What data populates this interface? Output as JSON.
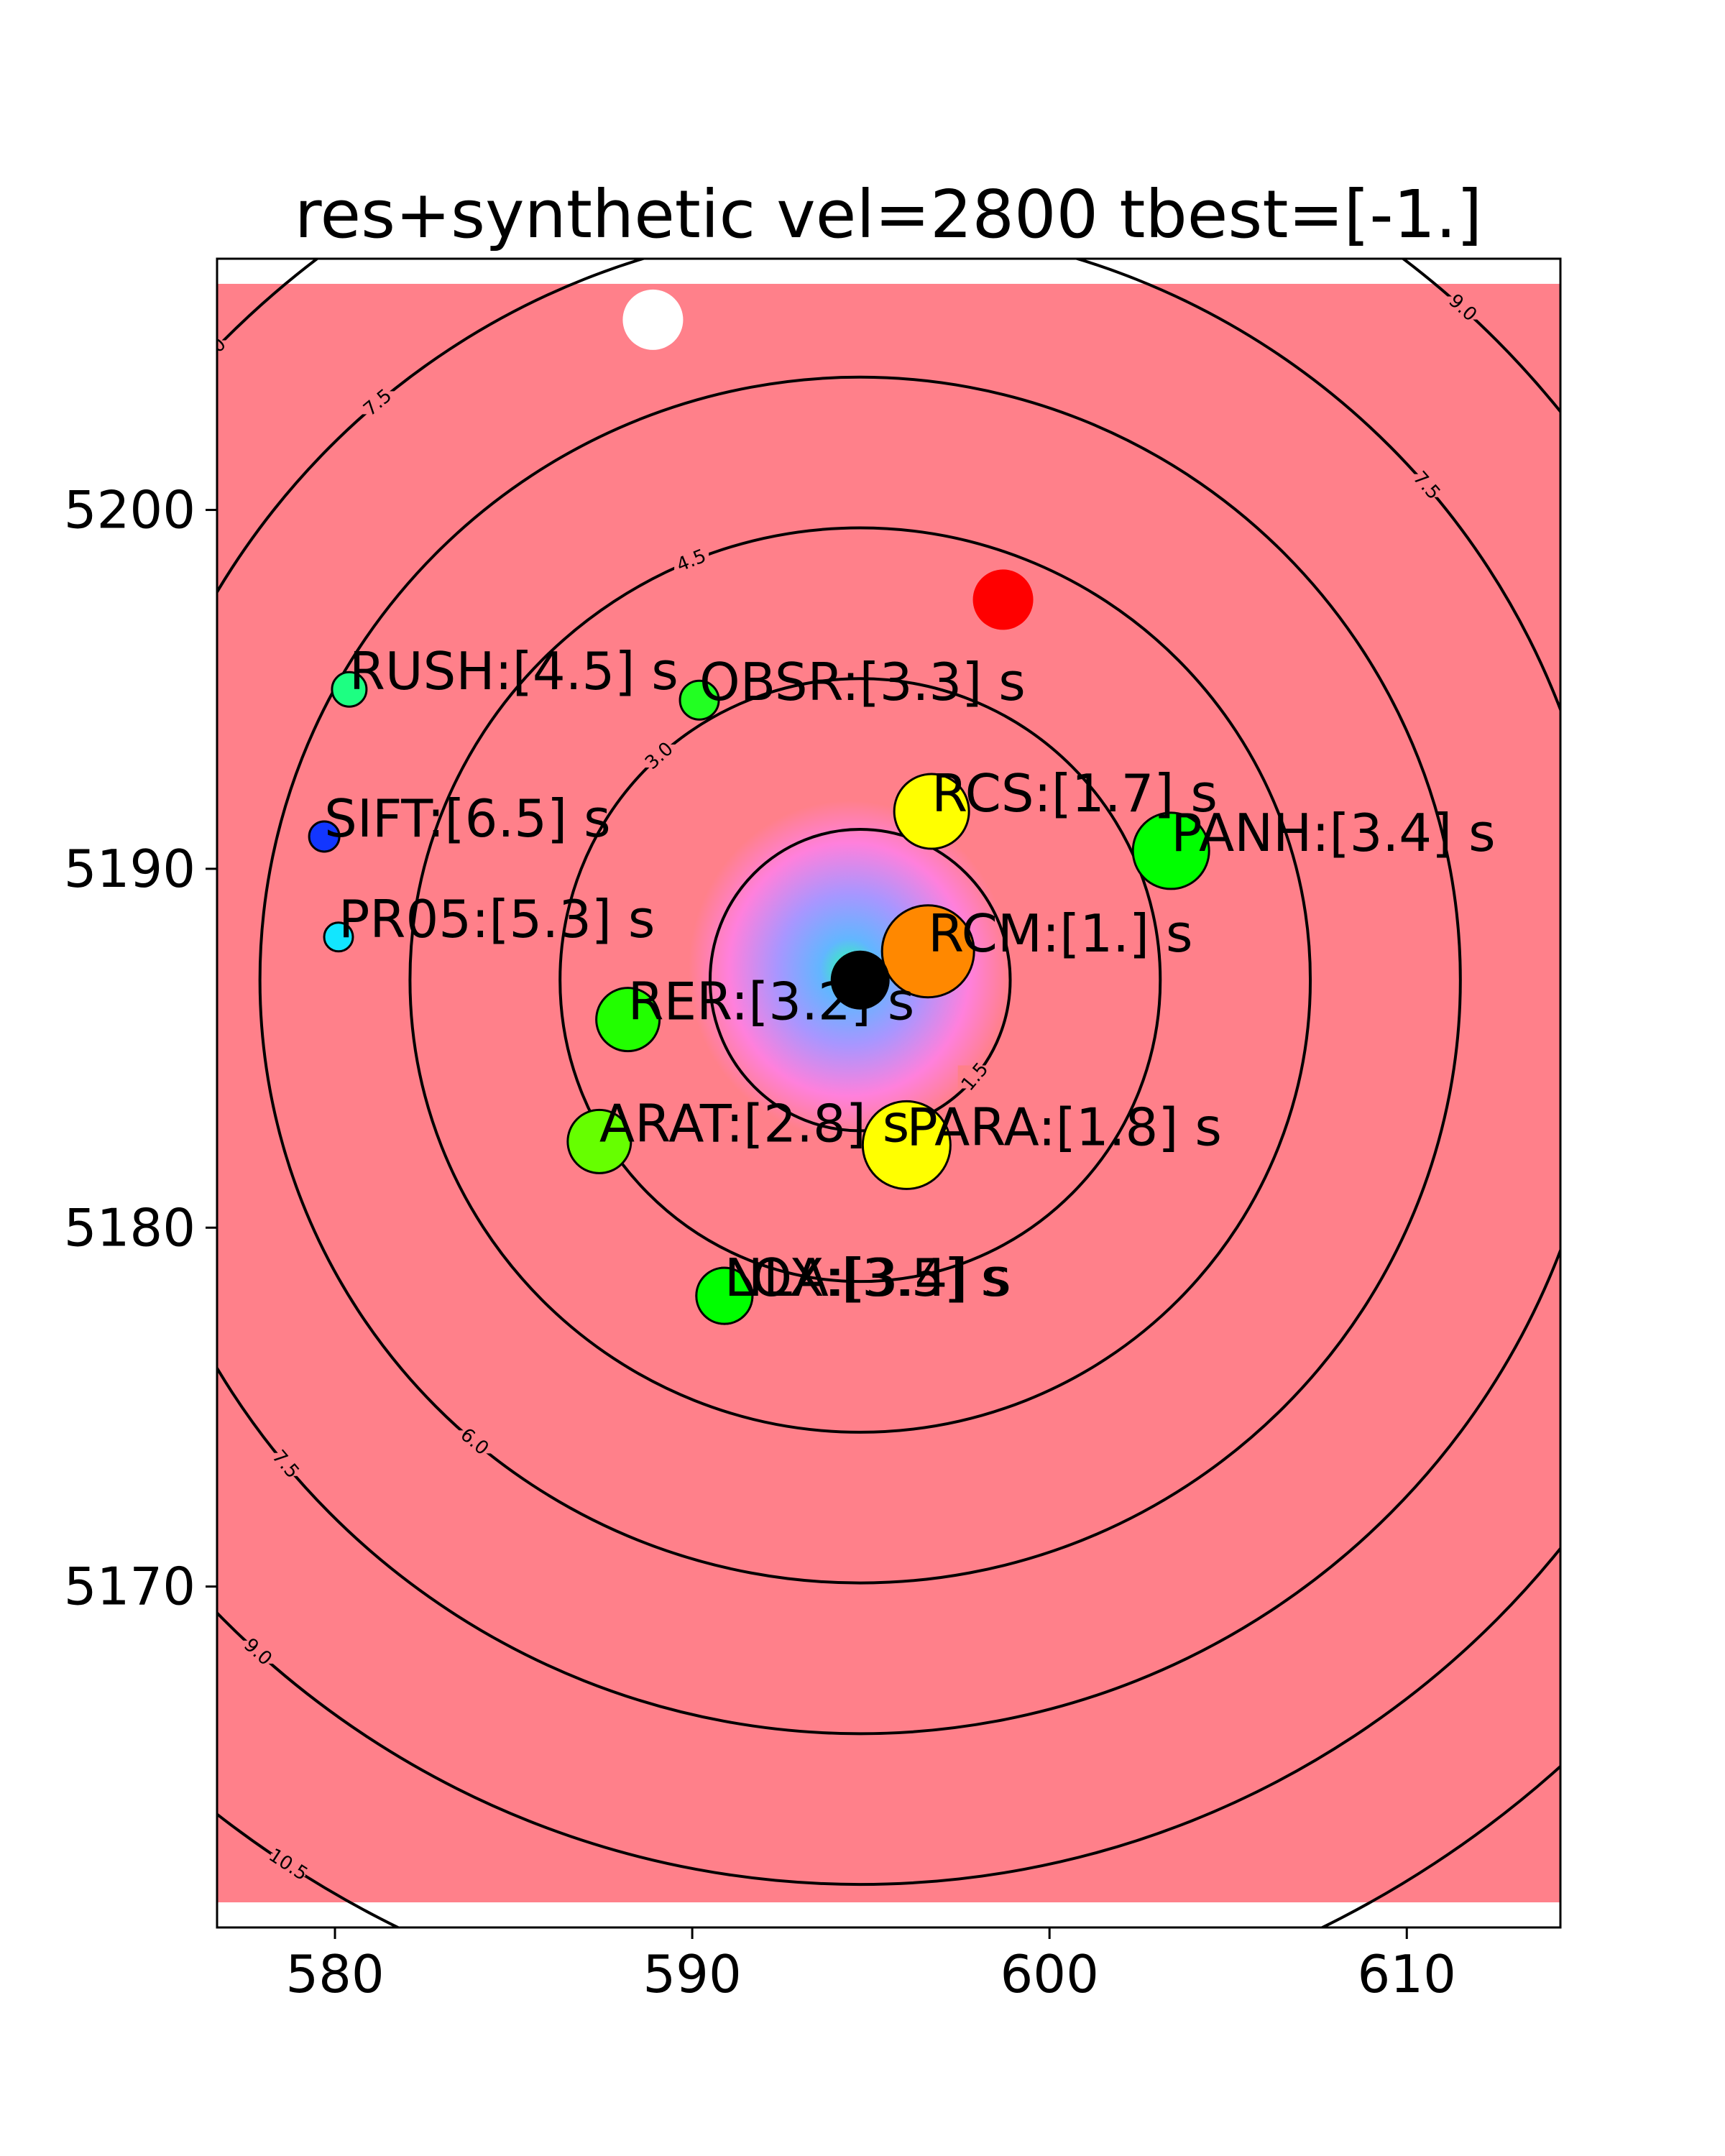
{
  "chart_data": {
    "type": "scatter",
    "title": "res+synthetic vel=2800 tbest=[-1.]",
    "xlabel": "",
    "ylabel": "",
    "xlim": [
      576.7,
      614.3
    ],
    "ylim": [
      5160.5,
      5207.0
    ],
    "xticks": [
      580,
      590,
      600,
      610
    ],
    "yticks": [
      5170,
      5180,
      5190,
      5200
    ],
    "grid": false,
    "background_color": "#ff808a",
    "heatmap_extent": {
      "x": [
        576.7,
        614.3
      ],
      "y": [
        5161.2,
        5206.3
      ]
    },
    "contour_center": [
      594.7,
      5186.9
    ],
    "contour_levels": [
      {
        "value": 1.5,
        "radius": 4.2,
        "labels": [
          {
            "text": "1.5",
            "angle": -40
          }
        ]
      },
      {
        "value": 3.0,
        "radius": 8.4,
        "labels": [
          {
            "text": "3.0",
            "angle": 132
          }
        ]
      },
      {
        "value": 4.5,
        "radius": 12.6,
        "labels": [
          {
            "text": "4.5",
            "angle": 112
          }
        ]
      },
      {
        "value": 6.0,
        "radius": 16.8,
        "labels": [
          {
            "text": "6.0",
            "angle": -130
          }
        ]
      },
      {
        "value": 7.5,
        "radius": 21.0,
        "labels": [
          {
            "text": "7.5",
            "angle": 130
          },
          {
            "text": "7.5",
            "angle": 41
          },
          {
            "text": "7.5",
            "angle": -140
          }
        ]
      },
      {
        "value": 9.0,
        "radius": 25.2,
        "labels": [
          {
            "text": "9.0",
            "angle": 136
          },
          {
            "text": "9.0",
            "angle": 48
          },
          {
            "text": "9.0",
            "angle": -132
          }
        ]
      },
      {
        "value": 10.5,
        "radius": 29.4,
        "labels": [
          {
            "text": "10.5",
            "angle": -123
          },
          {
            "text": "10.5",
            "angle": -43
          }
        ]
      }
    ],
    "stations": [
      {
        "name": "RUSH:[4.5] s",
        "x": 580.4,
        "y": 5195.0,
        "size": 48,
        "color": "#1dff82"
      },
      {
        "name": "OBSR:[3.3] s",
        "x": 590.2,
        "y": 5194.7,
        "size": 54,
        "color": "#22ff22"
      },
      {
        "name": "SIFT:[6.5] s",
        "x": 579.7,
        "y": 5190.9,
        "size": 42,
        "color": "#1236ff"
      },
      {
        "name": "RCS:[1.7] s",
        "x": 596.7,
        "y": 5191.6,
        "size": 104,
        "color": "#ffff00"
      },
      {
        "name": "PANH:[3.4] s",
        "x": 603.4,
        "y": 5190.5,
        "size": 106,
        "color": "#00ff00"
      },
      {
        "name": "PR05:[5.3] s",
        "x": 580.1,
        "y": 5188.1,
        "size": 40,
        "color": "#12e6ff"
      },
      {
        "name": "RCM:[1.] s",
        "x": 596.6,
        "y": 5187.7,
        "size": 128,
        "color": "#ff8800"
      },
      {
        "name": "RER:[3.2] s",
        "x": 588.2,
        "y": 5185.8,
        "size": 88,
        "color": "#22ff00"
      },
      {
        "name": "ARAT:[2.8] s",
        "x": 587.4,
        "y": 5182.4,
        "size": 88,
        "color": "#66ff00"
      },
      {
        "name": "PARA:[1.8] s",
        "x": 596.0,
        "y": 5182.3,
        "size": 122,
        "color": "#ffff00"
      },
      {
        "name": "LOX:[3.5] s",
        "x": 590.9,
        "y": 5178.1,
        "size": 78,
        "color": "#00ff00"
      },
      {
        "name": "NLA:[3.4] s",
        "x": 590.9,
        "y": 5178.1,
        "size": 78,
        "color": "#00ff00"
      }
    ],
    "markers": [
      {
        "x": 594.7,
        "y": 5186.9,
        "size": 82,
        "color": "#000000"
      },
      {
        "x": 598.7,
        "y": 5197.5,
        "size": 84,
        "color": "#ff0000"
      },
      {
        "x": 588.9,
        "y": 5205.3,
        "size": 84,
        "color": "#ffffff"
      }
    ],
    "gradient_colors": [
      "#2dffa8",
      "#62b6ff",
      "#a896ff",
      "#ff80dc",
      "#ff808a"
    ]
  }
}
